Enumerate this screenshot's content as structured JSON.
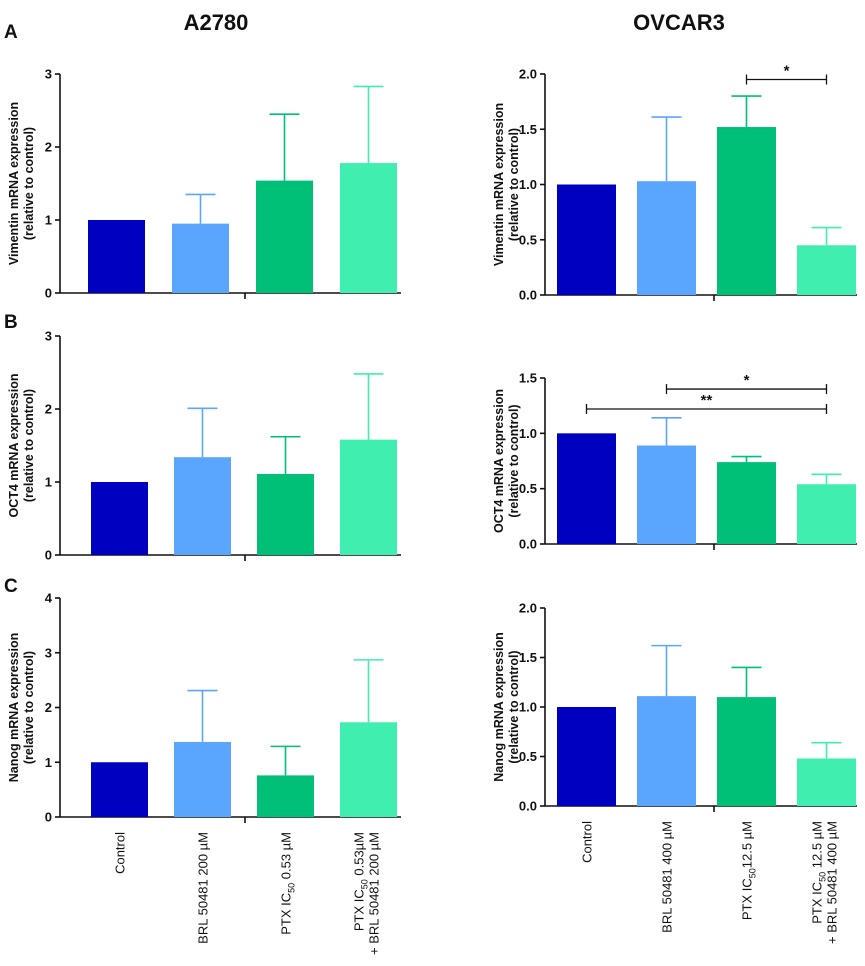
{
  "figure": {
    "column_titles": [
      "A2780",
      "OVCAR3"
    ],
    "panel_letters": [
      "A",
      "B",
      "C"
    ],
    "colors": {
      "control": "#0000C0",
      "brl": "#5AA6FF",
      "ptx": "#00C078",
      "combo": "#40EEB0",
      "axis": "#111111"
    },
    "categories_left": [
      {
        "main": "Control"
      },
      {
        "main": "BRL 50481 200 µM"
      },
      {
        "main": "PTX IC",
        "sub": "50",
        "tail": " 0.53 µM"
      },
      {
        "main": "PTX IC",
        "sub": "50",
        "tail": " 0.53µM",
        "line2": "+ BRL 50481  200 µM"
      }
    ],
    "categories_right": [
      {
        "main": "Control"
      },
      {
        "main": "BRL 50481 400 µM"
      },
      {
        "main": "PTX IC",
        "sub": "50",
        "tail": "12.5 µM"
      },
      {
        "main": "PTX IC",
        "sub": "50",
        "tail": " 12.5  µM",
        "line2": "+ BRL 50481  400 µM"
      }
    ]
  },
  "chart_data": [
    {
      "type": "bar",
      "panel": "A",
      "cell_line": "A2780",
      "ylabel": [
        "Vimentin mRNA expression",
        "(relative to control)"
      ],
      "ylim": [
        0,
        3
      ],
      "yticks": [
        0,
        1,
        2,
        3
      ],
      "ytick_labels": [
        "0",
        "1",
        "2",
        "3"
      ],
      "values": [
        1.0,
        0.95,
        1.54,
        1.78
      ],
      "errors": [
        0,
        0.4,
        0.91,
        1.05
      ],
      "significance": []
    },
    {
      "type": "bar",
      "panel": "A",
      "cell_line": "OVCAR3",
      "ylabel": [
        "Vimentin mRNA expression",
        "(relative to control)"
      ],
      "ylim": [
        0,
        2
      ],
      "yticks": [
        0,
        0.5,
        1,
        1.5,
        2
      ],
      "ytick_labels": [
        "0.0",
        "0.5",
        "1.0",
        "1.5",
        "2.0"
      ],
      "values": [
        1.0,
        1.03,
        1.52,
        0.45
      ],
      "errors": [
        0,
        0.58,
        0.28,
        0.16
      ],
      "significance": [
        {
          "from": 2,
          "to": 3,
          "label": "*",
          "y": 1.95
        }
      ]
    },
    {
      "type": "bar",
      "panel": "B",
      "cell_line": "A2780",
      "ylabel": [
        "OCT4 mRNA expression",
        "(relative to control)"
      ],
      "ylim": [
        0,
        3
      ],
      "yticks": [
        0,
        1,
        2,
        3
      ],
      "ytick_labels": [
        "0",
        "1",
        "2",
        "3"
      ],
      "values": [
        1.0,
        1.34,
        1.11,
        1.58
      ],
      "errors": [
        0,
        0.67,
        0.51,
        0.9
      ],
      "significance": []
    },
    {
      "type": "bar",
      "panel": "B",
      "cell_line": "OVCAR3",
      "ylabel": [
        "OCT4 mRNA expression",
        "(relative to control)"
      ],
      "ylim": [
        0,
        1.5
      ],
      "yticks": [
        0,
        0.5,
        1,
        1.5
      ],
      "ytick_labels": [
        "0.0",
        "0.5",
        "1.0",
        "1.5"
      ],
      "values": [
        1.0,
        0.89,
        0.74,
        0.54
      ],
      "errors": [
        0,
        0.25,
        0.05,
        0.09
      ],
      "significance": [
        {
          "from": 1,
          "to": 3,
          "label": "*",
          "y": 1.4
        },
        {
          "from": 0,
          "to": 3,
          "label": "**",
          "y": 1.22
        }
      ]
    },
    {
      "type": "bar",
      "panel": "C",
      "cell_line": "A2780",
      "ylabel": [
        "Nanog mRNA expression",
        "(relative to control)"
      ],
      "ylim": [
        0,
        4
      ],
      "yticks": [
        0,
        1,
        2,
        3,
        4
      ],
      "ytick_labels": [
        "0",
        "1",
        "2",
        "3",
        "4"
      ],
      "values": [
        1.0,
        1.37,
        0.76,
        1.73
      ],
      "errors": [
        0,
        0.94,
        0.53,
        1.14
      ],
      "significance": []
    },
    {
      "type": "bar",
      "panel": "C",
      "cell_line": "OVCAR3",
      "ylabel": [
        "Nanog mRNA expression",
        "(relative to control)"
      ],
      "ylim": [
        0,
        2
      ],
      "yticks": [
        0,
        0.5,
        1,
        1.5,
        2
      ],
      "ytick_labels": [
        "0.0",
        "0.5",
        "1.0",
        "1.5",
        "2.0"
      ],
      "values": [
        1.0,
        1.11,
        1.1,
        0.48
      ],
      "errors": [
        0,
        0.51,
        0.3,
        0.16
      ],
      "significance": []
    }
  ]
}
